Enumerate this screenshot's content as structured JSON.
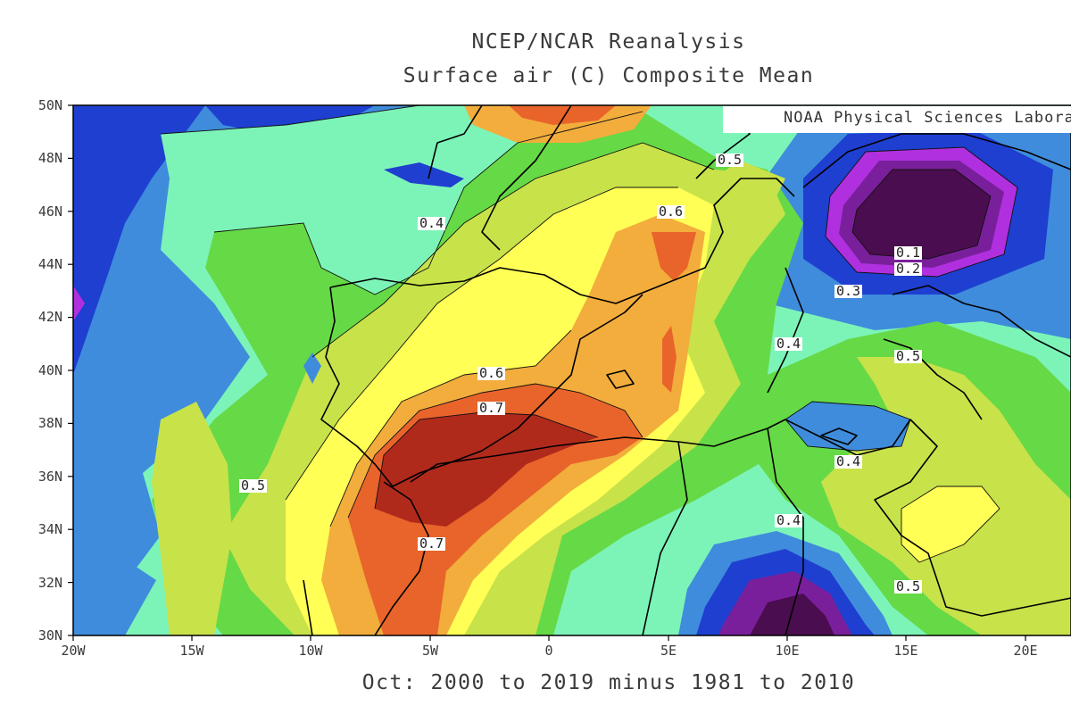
{
  "header": {
    "title": "NCEP/NCAR Reanalysis",
    "subtitle": "Surface air (C) Composite Mean"
  },
  "credit": "NOAA Physical Sciences Laboratory",
  "period": "Oct: 2000 to 2019 minus 1981 to 2010",
  "axes": {
    "lat_labels": [
      "50N",
      "48N",
      "46N",
      "44N",
      "42N",
      "40N",
      "38N",
      "36N",
      "34N",
      "32N",
      "30N"
    ],
    "lon_labels": [
      "20W",
      "15W",
      "10W",
      "5W",
      "0",
      "5E",
      "10E",
      "15E",
      "20E"
    ]
  },
  "contour_labels": [
    "0.4",
    "0.5",
    "0.6",
    "0.1",
    "0.2",
    "0.3",
    "0.4",
    "0.5",
    "0.6",
    "0.7",
    "0.4",
    "0.4",
    "0.5",
    "0.7",
    "0.5"
  ],
  "colors": {
    "lt_0.1": "#4a0d4f",
    "0.1_0.2": "#7a1f9c",
    "0.2_0.3": "#b030e0",
    "0.3_0.4": "#1e3fd0",
    "0.4_0.5": "#3f8cdc",
    "0.5_0.6": "#7cf4b8",
    "0.6_0.7": "#66d946",
    "0.7_0.8": "#c8e24a",
    "0.8_0.9": "#ffff55",
    "0.9_1.0": "#f2ad3c",
    "1.0_1.1": "#e8642a",
    "gt_1.1": "#b02a1c"
  }
}
